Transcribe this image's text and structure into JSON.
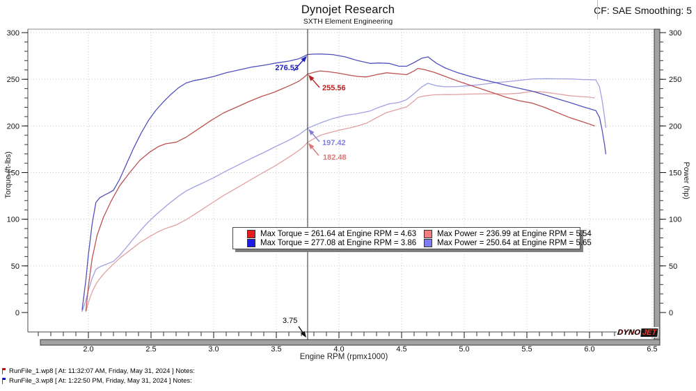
{
  "header": {
    "cf_label": "CF: SAE Smoothing: 5"
  },
  "chart_data": {
    "type": "line",
    "title": "Dynojet Research",
    "subtitle": "SXTH Element Engineering",
    "xlabel": "Engine RPM (rpmx1000)",
    "ylabel_left": "Torque (ft-lbs)",
    "ylabel_right": "Power (hp)",
    "xlim": [
      1.52,
      6.56
    ],
    "ylim": [
      0,
      300
    ],
    "grid": "dotted",
    "legend_position": "center",
    "x_major_ticks": [
      {
        "v": 2.0,
        "label": "2.0"
      },
      {
        "v": 2.5,
        "label": "2.5"
      },
      {
        "v": 3.0,
        "label": "3.0"
      },
      {
        "v": 3.5,
        "label": "3.5"
      },
      {
        "v": 4.0,
        "label": "4.0"
      },
      {
        "v": 4.5,
        "label": "4.5"
      },
      {
        "v": 5.0,
        "label": "5.0"
      },
      {
        "v": 5.5,
        "label": "5.5"
      },
      {
        "v": 6.0,
        "label": "6.0"
      },
      {
        "v": 6.5,
        "label": "6.5"
      }
    ],
    "x_minor_step": 0.1,
    "y_major_ticks": [
      {
        "v": 0,
        "label": "0"
      },
      {
        "v": 50,
        "label": "50"
      },
      {
        "v": 100,
        "label": "100"
      },
      {
        "v": 150,
        "label": "150"
      },
      {
        "v": 200,
        "label": "200"
      },
      {
        "v": 250,
        "label": "250"
      },
      {
        "v": 300,
        "label": "300"
      }
    ],
    "y_minor_step": 10,
    "cursor": {
      "rpm": 3.75,
      "label": "3.75",
      "readouts": [
        {
          "series": "torque_run3",
          "value": 276.53,
          "label": "276.53",
          "color": "#2020be",
          "side": "left"
        },
        {
          "series": "torque_run1",
          "value": 255.56,
          "label": "255.56",
          "color": "#be2020",
          "side": "right"
        },
        {
          "series": "power_run3",
          "value": 197.42,
          "label": "197.42",
          "color": "#8080d8",
          "side": "right"
        },
        {
          "series": "power_run1",
          "value": 182.48,
          "label": "182.48",
          "color": "#dd7777",
          "side": "right"
        }
      ]
    },
    "legend": {
      "items": [
        {
          "color": "#e81c1c",
          "label": "Max Torque = 261.64 at Engine RPM = 4.63"
        },
        {
          "color": "#1c1ce8",
          "label": "Max Torque = 277.08 at Engine RPM = 3.86"
        },
        {
          "color": "#f47c7c",
          "label": "Max Power = 236.99 at Engine RPM = 5.54"
        },
        {
          "color": "#7c7cf4",
          "label": "Max Power = 250.64 at Engine RPM = 5.65"
        }
      ]
    },
    "series": [
      {
        "id": "torque_run1",
        "name": "Torque RunFile_1",
        "axis": "left",
        "color": "#bc5151",
        "points": [
          [
            1.98,
            2
          ],
          [
            2.0,
            28
          ],
          [
            2.03,
            58
          ],
          [
            2.07,
            83
          ],
          [
            2.12,
            102
          ],
          [
            2.18,
            119
          ],
          [
            2.25,
            136
          ],
          [
            2.33,
            150
          ],
          [
            2.41,
            163
          ],
          [
            2.49,
            172
          ],
          [
            2.56,
            178
          ],
          [
            2.62,
            181
          ],
          [
            2.7,
            182.5
          ],
          [
            2.78,
            188
          ],
          [
            2.88,
            197
          ],
          [
            2.98,
            206
          ],
          [
            3.08,
            214
          ],
          [
            3.18,
            220
          ],
          [
            3.28,
            226
          ],
          [
            3.38,
            231.5
          ],
          [
            3.48,
            236
          ],
          [
            3.55,
            240
          ],
          [
            3.62,
            244
          ],
          [
            3.68,
            248
          ],
          [
            3.72,
            252
          ],
          [
            3.75,
            255.56
          ],
          [
            3.8,
            257.5
          ],
          [
            3.85,
            259
          ],
          [
            3.92,
            258
          ],
          [
            4.0,
            256.5
          ],
          [
            4.08,
            254.5
          ],
          [
            4.15,
            253
          ],
          [
            4.22,
            252.5
          ],
          [
            4.3,
            255
          ],
          [
            4.38,
            257
          ],
          [
            4.46,
            256
          ],
          [
            4.54,
            255
          ],
          [
            4.6,
            259
          ],
          [
            4.63,
            261.64
          ],
          [
            4.68,
            260.5
          ],
          [
            4.76,
            257.5
          ],
          [
            4.84,
            253.5
          ],
          [
            4.94,
            248.5
          ],
          [
            5.04,
            244
          ],
          [
            5.14,
            239.5
          ],
          [
            5.24,
            235
          ],
          [
            5.34,
            230.5
          ],
          [
            5.44,
            227
          ],
          [
            5.54,
            224.5
          ],
          [
            5.64,
            220
          ],
          [
            5.74,
            214.5
          ],
          [
            5.84,
            209
          ],
          [
            5.92,
            205.5
          ],
          [
            6.0,
            202
          ],
          [
            6.04,
            200
          ]
        ]
      },
      {
        "id": "torque_run3",
        "name": "Torque RunFile_3",
        "axis": "left",
        "color": "#5151bc",
        "points": [
          [
            1.95,
            3
          ],
          [
            1.98,
            35
          ],
          [
            2.0,
            62
          ],
          [
            2.03,
            95
          ],
          [
            2.06,
            118
          ],
          [
            2.09,
            123
          ],
          [
            2.13,
            126
          ],
          [
            2.16,
            128
          ],
          [
            2.2,
            131
          ],
          [
            2.25,
            143
          ],
          [
            2.3,
            158
          ],
          [
            2.36,
            176
          ],
          [
            2.42,
            192
          ],
          [
            2.48,
            206
          ],
          [
            2.54,
            217
          ],
          [
            2.6,
            226
          ],
          [
            2.66,
            234
          ],
          [
            2.72,
            241
          ],
          [
            2.78,
            246
          ],
          [
            2.84,
            248.5
          ],
          [
            2.9,
            250
          ],
          [
            3.0,
            253
          ],
          [
            3.1,
            257
          ],
          [
            3.2,
            260
          ],
          [
            3.3,
            263
          ],
          [
            3.4,
            265
          ],
          [
            3.5,
            267.5
          ],
          [
            3.6,
            269.5
          ],
          [
            3.68,
            272
          ],
          [
            3.75,
            276.53
          ],
          [
            3.8,
            277
          ],
          [
            3.86,
            277.08
          ],
          [
            3.95,
            276.5
          ],
          [
            4.05,
            274
          ],
          [
            4.15,
            270
          ],
          [
            4.25,
            267
          ],
          [
            4.32,
            267.5
          ],
          [
            4.4,
            267
          ],
          [
            4.48,
            264
          ],
          [
            4.54,
            264
          ],
          [
            4.6,
            268
          ],
          [
            4.66,
            272.5
          ],
          [
            4.71,
            274
          ],
          [
            4.78,
            267
          ],
          [
            4.85,
            262
          ],
          [
            4.95,
            257
          ],
          [
            5.05,
            253
          ],
          [
            5.15,
            249.5
          ],
          [
            5.25,
            246.5
          ],
          [
            5.35,
            243
          ],
          [
            5.45,
            240
          ],
          [
            5.55,
            237
          ],
          [
            5.65,
            233
          ],
          [
            5.75,
            228.8
          ],
          [
            5.85,
            224.8
          ],
          [
            5.95,
            220.4
          ],
          [
            6.0,
            218.5
          ],
          [
            6.05,
            216.5
          ],
          [
            6.08,
            209
          ],
          [
            6.1,
            196
          ],
          [
            6.12,
            180
          ],
          [
            6.13,
            170
          ]
        ]
      },
      {
        "id": "power_run1",
        "name": "Power RunFile_1",
        "axis": "right",
        "color": "#e2a0a0",
        "points": [
          [
            1.98,
            0.8
          ],
          [
            2.0,
            10.7
          ],
          [
            2.03,
            22.4
          ],
          [
            2.07,
            32.7
          ],
          [
            2.12,
            41.2
          ],
          [
            2.18,
            49.4
          ],
          [
            2.25,
            58.3
          ],
          [
            2.33,
            66.5
          ],
          [
            2.41,
            74.8
          ],
          [
            2.49,
            81.6
          ],
          [
            2.56,
            86.8
          ],
          [
            2.62,
            90.3
          ],
          [
            2.7,
            93.8
          ],
          [
            2.78,
            99.5
          ],
          [
            2.88,
            108.0
          ],
          [
            2.98,
            116.9
          ],
          [
            3.08,
            125.5
          ],
          [
            3.18,
            133.2
          ],
          [
            3.28,
            141.1
          ],
          [
            3.38,
            148.9
          ],
          [
            3.48,
            156.4
          ],
          [
            3.55,
            162.2
          ],
          [
            3.62,
            168.2
          ],
          [
            3.68,
            173.8
          ],
          [
            3.72,
            178.1
          ],
          [
            3.75,
            182.48
          ],
          [
            3.8,
            186.3
          ],
          [
            3.85,
            189.9
          ],
          [
            3.92,
            192.6
          ],
          [
            4.0,
            195.4
          ],
          [
            4.08,
            197.7
          ],
          [
            4.15,
            200.0
          ],
          [
            4.22,
            202.9
          ],
          [
            4.3,
            208.8
          ],
          [
            4.38,
            214.3
          ],
          [
            4.46,
            217.4
          ],
          [
            4.54,
            220.4
          ],
          [
            4.6,
            226.8
          ],
          [
            4.63,
            230.6
          ],
          [
            4.68,
            232.1
          ],
          [
            4.76,
            233.4
          ],
          [
            4.84,
            233.6
          ],
          [
            4.94,
            233.7
          ],
          [
            5.04,
            234.1
          ],
          [
            5.14,
            234.4
          ],
          [
            5.24,
            234.5
          ],
          [
            5.34,
            234.3
          ],
          [
            5.44,
            235.1
          ],
          [
            5.54,
            236.99
          ],
          [
            5.64,
            236.2
          ],
          [
            5.74,
            234.4
          ],
          [
            5.84,
            232.4
          ],
          [
            5.92,
            231.6
          ],
          [
            6.0,
            230.8
          ],
          [
            6.04,
            230.0
          ]
        ]
      },
      {
        "id": "power_run3",
        "name": "Power RunFile_3",
        "axis": "right",
        "color": "#a0a0e2",
        "points": [
          [
            1.95,
            1.1
          ],
          [
            1.98,
            13.2
          ],
          [
            2.0,
            23.6
          ],
          [
            2.03,
            36.7
          ],
          [
            2.06,
            46.3
          ],
          [
            2.09,
            48.9
          ],
          [
            2.13,
            51.1
          ],
          [
            2.16,
            52.6
          ],
          [
            2.2,
            54.9
          ],
          [
            2.25,
            61.3
          ],
          [
            2.3,
            69.2
          ],
          [
            2.36,
            79.1
          ],
          [
            2.42,
            88.5
          ],
          [
            2.48,
            97.3
          ],
          [
            2.54,
            104.9
          ],
          [
            2.6,
            111.9
          ],
          [
            2.66,
            118.5
          ],
          [
            2.72,
            124.8
          ],
          [
            2.78,
            130.2
          ],
          [
            2.84,
            134.4
          ],
          [
            2.9,
            138.0
          ],
          [
            3.0,
            144.5
          ],
          [
            3.1,
            151.7
          ],
          [
            3.2,
            158.4
          ],
          [
            3.3,
            165.2
          ],
          [
            3.4,
            171.5
          ],
          [
            3.5,
            178.3
          ],
          [
            3.6,
            184.7
          ],
          [
            3.68,
            190.6
          ],
          [
            3.75,
            197.42
          ],
          [
            3.8,
            200.4
          ],
          [
            3.86,
            203.6
          ],
          [
            3.95,
            207.9
          ],
          [
            4.05,
            211.3
          ],
          [
            4.15,
            213.3
          ],
          [
            4.25,
            216.1
          ],
          [
            4.32,
            220.0
          ],
          [
            4.4,
            223.7
          ],
          [
            4.48,
            225.2
          ],
          [
            4.54,
            228.2
          ],
          [
            4.6,
            234.7
          ],
          [
            4.66,
            241.8
          ],
          [
            4.71,
            245.7
          ],
          [
            4.78,
            243.0
          ],
          [
            4.85,
            241.9
          ],
          [
            4.95,
            242.2
          ],
          [
            5.05,
            243.3
          ],
          [
            5.15,
            244.6
          ],
          [
            5.25,
            246.4
          ],
          [
            5.35,
            247.5
          ],
          [
            5.45,
            249.0
          ],
          [
            5.55,
            250.4
          ],
          [
            5.65,
            250.64
          ],
          [
            5.75,
            250.5
          ],
          [
            5.85,
            250.4
          ],
          [
            5.95,
            249.7
          ],
          [
            6.0,
            249.6
          ],
          [
            6.05,
            249.4
          ],
          [
            6.08,
            241.9
          ],
          [
            6.1,
            227.7
          ],
          [
            6.12,
            209.7
          ],
          [
            6.13,
            198.4
          ]
        ]
      }
    ]
  },
  "footer": {
    "runs": [
      {
        "file": "RunFile_1.wp8",
        "flag_color": "#cc0000",
        "text": "RunFile_1.wp8 [ At: 11:32:07 AM, Friday, May 31, 2024 ] Notes:"
      },
      {
        "file": "RunFile_3.wp8",
        "flag_color": "#0000cc",
        "text": "RunFile_3.wp8 [ At: 1:22:50 PM, Friday, May 31, 2024 ] Notes:"
      }
    ]
  },
  "logo": {
    "dyno": "DYNO",
    "jet": "JET"
  }
}
